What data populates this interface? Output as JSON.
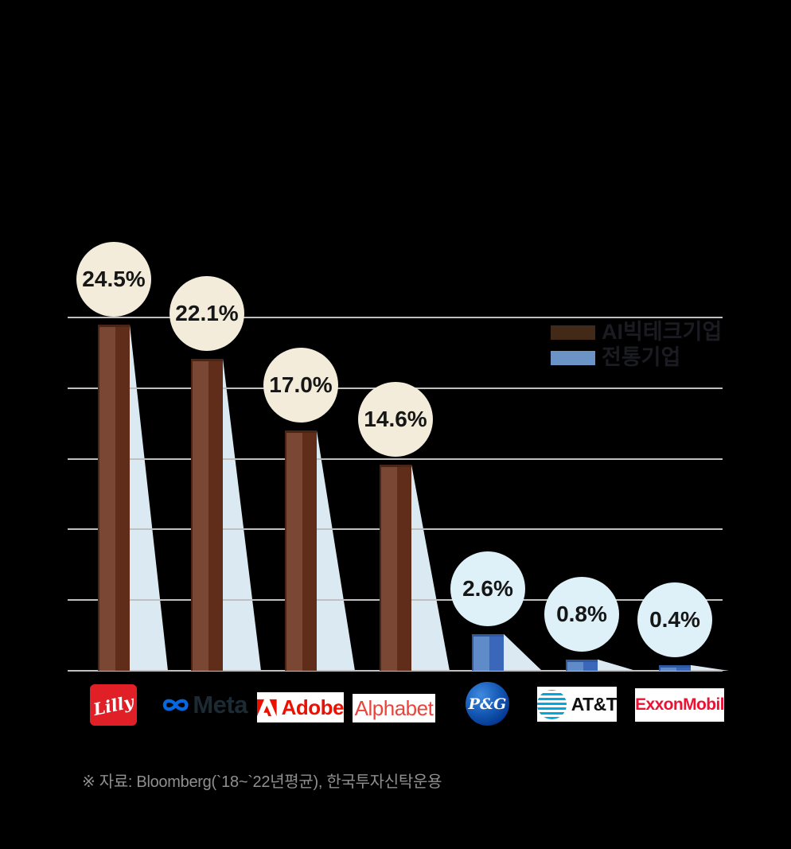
{
  "chart_data": {
    "type": "bar",
    "title": "",
    "categories": [
      "Lilly",
      "Meta",
      "Adobe",
      "Alphabet",
      "P&G",
      "AT&T",
      "ExxonMobil"
    ],
    "series": [
      {
        "name": "AI빅테크기업",
        "group": "ai",
        "values": [
          24.5,
          22.1,
          17.0,
          14.6,
          null,
          null,
          null
        ]
      },
      {
        "name": "전통기업",
        "group": "trad",
        "values": [
          null,
          null,
          null,
          null,
          2.6,
          0.8,
          0.4
        ]
      }
    ],
    "value_labels": [
      "24.5%",
      "22.1%",
      "17.0%",
      "14.6%",
      "2.6%",
      "0.8%",
      "0.4%"
    ],
    "ylim": [
      0,
      25
    ],
    "gridline_step": 5,
    "grid": true,
    "legend_position": "top-right"
  },
  "legend": {
    "items": [
      {
        "label": "AI빅테크기업",
        "color": "#432a18"
      },
      {
        "label": "전통기업",
        "color": "#6b93c6"
      }
    ]
  },
  "source": {
    "text": "※ 자료: Bloomberg(`18~`22년평균), 한국투자신탁운용"
  },
  "logos": {
    "lilly": "Lilly",
    "meta": "Meta",
    "adobe": "Adobe",
    "alphabet": "Alphabet",
    "pg": "P&G",
    "att": "AT&T",
    "exxon": "ExxonMobil"
  },
  "colors": {
    "background": "#000000",
    "gridline": "#c0c0c0",
    "ai_bar_light": "#7a4735",
    "ai_bar_dark": "#5f2d1a",
    "ai_bar_top": "#4c2413",
    "trad_bar_light": "#5f8bc9",
    "trad_bar_dark": "#3a67ba",
    "trad_bar_top": "#30589e",
    "ai_bubble": "#f3ecdb",
    "trad_bubble": "#def1f8",
    "shadow_triangle": "#dae9f2",
    "label_text": "#161616",
    "legend_text": "#1b1b22",
    "source_text": "#8f8f8f"
  }
}
